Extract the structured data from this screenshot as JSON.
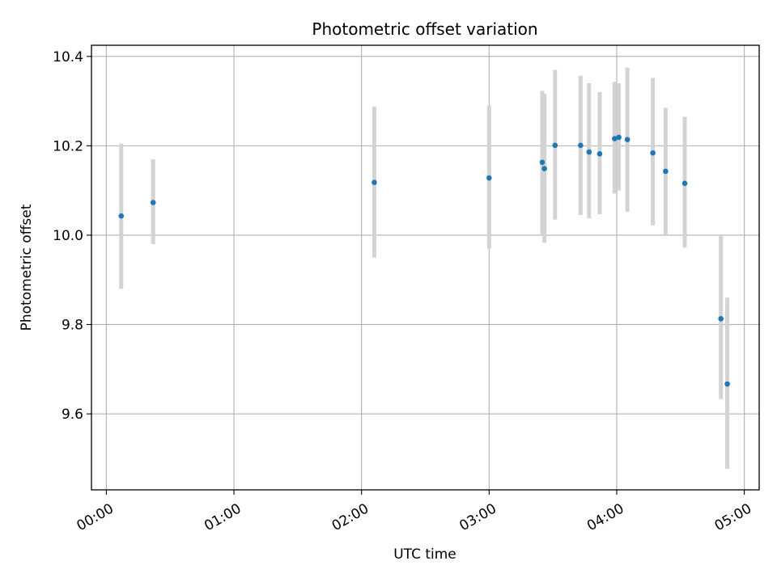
{
  "chart_data": {
    "type": "scatter",
    "title": "Photometric offset variation",
    "xlabel": "UTC time",
    "ylabel": "Photometric offset",
    "x_unit": "HH:MM (UTC)",
    "xlim": [
      "-00:07",
      "05:07"
    ],
    "ylim": [
      9.43,
      10.425
    ],
    "grid": true,
    "xticks": [
      "00:00",
      "01:00",
      "02:00",
      "03:00",
      "04:00",
      "05:00"
    ],
    "yticks": [
      9.6,
      9.8,
      10.0,
      10.2,
      10.4
    ],
    "ytick_labels": [
      "9.6",
      "9.8",
      "10.0",
      "10.2",
      "10.4"
    ],
    "point_color": "#1f77b4",
    "errorbar_color": "#d3d3d3",
    "points": [
      {
        "x": "00:07",
        "y": 10.043,
        "low": 9.88,
        "high": 10.205
      },
      {
        "x": "00:22",
        "y": 10.073,
        "low": 9.98,
        "high": 10.17
      },
      {
        "x": "02:06",
        "y": 10.118,
        "low": 9.95,
        "high": 10.288
      },
      {
        "x": "03:00",
        "y": 10.128,
        "low": 9.97,
        "high": 10.29
      },
      {
        "x": "03:25",
        "y": 10.163,
        "low": 10.002,
        "high": 10.323
      },
      {
        "x": "03:26",
        "y": 10.149,
        "low": 9.983,
        "high": 10.316
      },
      {
        "x": "03:31",
        "y": 10.201,
        "low": 10.035,
        "high": 10.37
      },
      {
        "x": "03:43",
        "y": 10.201,
        "low": 10.045,
        "high": 10.357
      },
      {
        "x": "03:47",
        "y": 10.186,
        "low": 10.038,
        "high": 10.34
      },
      {
        "x": "03:52",
        "y": 10.182,
        "low": 10.047,
        "high": 10.32
      },
      {
        "x": "03:59",
        "y": 10.216,
        "low": 10.093,
        "high": 10.343
      },
      {
        "x": "04:01",
        "y": 10.219,
        "low": 10.1,
        "high": 10.34
      },
      {
        "x": "04:05",
        "y": 10.214,
        "low": 10.052,
        "high": 10.375
      },
      {
        "x": "04:17",
        "y": 10.184,
        "low": 10.022,
        "high": 10.352
      },
      {
        "x": "04:23",
        "y": 10.143,
        "low": 10.0,
        "high": 10.285
      },
      {
        "x": "04:32",
        "y": 10.116,
        "low": 9.972,
        "high": 10.265
      },
      {
        "x": "04:49",
        "y": 9.813,
        "low": 9.633,
        "high": 10.0
      },
      {
        "x": "04:52",
        "y": 9.667,
        "low": 9.477,
        "high": 9.86
      }
    ]
  }
}
